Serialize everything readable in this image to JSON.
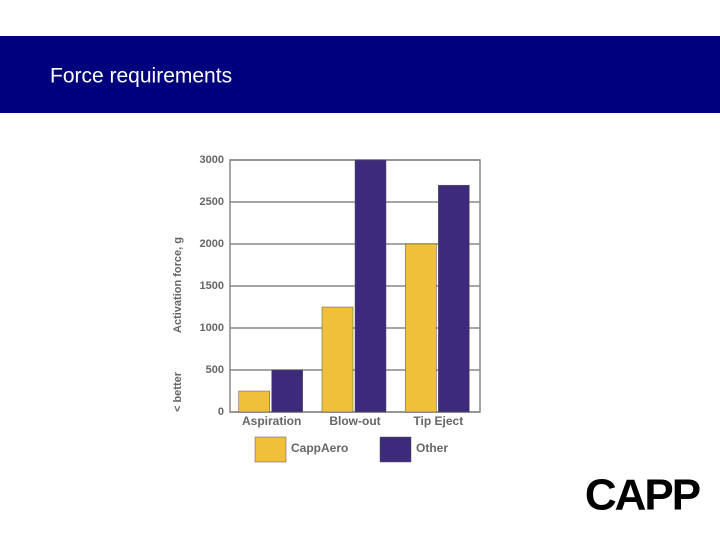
{
  "slide": {
    "title": "Force requirements",
    "logo": "CAPP"
  },
  "chart_data": {
    "type": "bar",
    "categories": [
      "Aspiration",
      "Blow-out",
      "Tip Eject"
    ],
    "series": [
      {
        "name": "CappAero",
        "color": "#f0c03a",
        "values": [
          250,
          1250,
          2000
        ]
      },
      {
        "name": "Other",
        "color": "#3d2a7a",
        "values": [
          500,
          3000,
          2700
        ]
      }
    ],
    "y_label": "Activation force, g",
    "annotation": "< better",
    "ylim": [
      0,
      3000
    ],
    "yticks": [
      0,
      500,
      1000,
      1500,
      2000,
      2500,
      3000
    ],
    "grid": true,
    "legend": "bottom"
  }
}
